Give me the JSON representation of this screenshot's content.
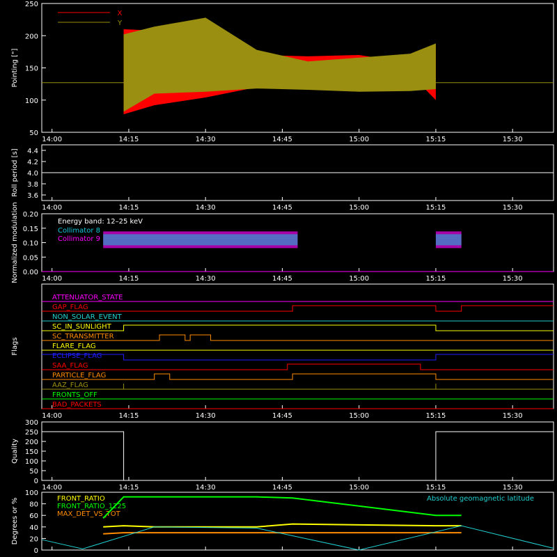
{
  "colors": {
    "background": "#000000",
    "frame": "#ffffff",
    "x_series": "#ff0000",
    "y_series": "#9a8f10",
    "collimator8": "#11c7d8",
    "collimator9": "#ff00ff",
    "front_ratio": "#ffff00",
    "front_ratio_1225": "#00ff00",
    "max_det": "#ff8c00",
    "geomag": "#20d0d0"
  },
  "time_ticks": [
    "14:00",
    "14:15",
    "14:30",
    "14:45",
    "15:00",
    "15:15",
    "15:30"
  ],
  "chart_data": [
    {
      "type": "line",
      "ylabel": "Pointing [\"]",
      "ylim": [
        50,
        250
      ],
      "yticks": [
        "50",
        "100",
        "150",
        "200",
        "250"
      ],
      "legend": [
        {
          "label": "X",
          "color_key": "x_series"
        },
        {
          "label": "Y",
          "color_key": "y_series"
        }
      ],
      "series": [
        {
          "name": "X",
          "x": [
            "14:14",
            "14:20",
            "14:30",
            "14:40",
            "14:50",
            "15:00",
            "15:10",
            "15:15"
          ],
          "values": [
            [
              78,
              210
            ],
            [
              92,
              208
            ],
            [
              104,
              205
            ],
            [
              120,
              170
            ],
            [
              140,
              168
            ],
            [
              148,
              170
            ],
            [
              141,
              158
            ],
            [
              100,
              185
            ]
          ]
        },
        {
          "name": "Y",
          "x": [
            "14:14",
            "14:20",
            "14:30",
            "14:40",
            "14:50",
            "15:00",
            "15:10",
            "15:15"
          ],
          "values": [
            [
              82,
              202
            ],
            [
              110,
              214
            ],
            [
              113,
              228
            ],
            [
              118,
              178
            ],
            [
              116,
              160
            ],
            [
              113,
              166
            ],
            [
              114,
              172
            ],
            [
              117,
              188
            ]
          ]
        }
      ],
      "baseline": 127
    },
    {
      "type": "line",
      "ylabel": "Roll period [s]",
      "ylim": [
        3.5,
        4.5
      ],
      "yticks": [
        "3.6",
        "3.8",
        "4.0",
        "4.2",
        "4.4"
      ],
      "series": [
        {
          "name": "",
          "x": [
            "13:58",
            "15:38"
          ],
          "values": [
            4.0,
            4.0
          ]
        }
      ]
    },
    {
      "type": "line",
      "ylabel": "Normalized modulation",
      "ylim": [
        0.0,
        0.2
      ],
      "yticks": [
        "0.00",
        "0.05",
        "0.10",
        "0.15",
        "0.20"
      ],
      "legend_title": "Energy band: 12–25 keV",
      "legend": [
        {
          "label": "Collimator 8",
          "color_key": "collimator8"
        },
        {
          "label": "Collimator 9",
          "color_key": "collimator9"
        }
      ],
      "active_ranges": [
        [
          "14:10",
          "14:48"
        ],
        [
          "15:15",
          "15:20"
        ]
      ],
      "level": 0.11
    },
    {
      "type": "table",
      "ylabel": "Flags",
      "flags": [
        {
          "name": "ATTENUATOR_STATE",
          "color_key": "collimator9",
          "segments": [
            [
              "13:58",
              "15:38",
              0
            ]
          ]
        },
        {
          "name": "GAP_FLAG",
          "color_key": "x_series",
          "segments": [
            [
              "13:58",
              "14:47",
              0
            ],
            [
              "14:47",
              "15:15",
              1
            ],
            [
              "15:15",
              "15:20",
              0
            ],
            [
              "15:20",
              "15:38",
              1
            ]
          ]
        },
        {
          "name": "NON_SOLAR_EVENT",
          "color_key": "geomag",
          "segments": [
            [
              "13:58",
              "15:38",
              0
            ]
          ]
        },
        {
          "name": "SC_IN_SUNLIGHT",
          "color_key": "front_ratio",
          "segments": [
            [
              "13:58",
              "14:14",
              0
            ],
            [
              "14:14",
              "15:15",
              1
            ],
            [
              "15:15",
              "15:38",
              0
            ]
          ]
        },
        {
          "name": "SC_TRANSMITTER",
          "color_key": "max_det",
          "segments": [
            [
              "13:58",
              "14:21",
              0
            ],
            [
              "14:21",
              "14:26",
              1
            ],
            [
              "14:26",
              "14:27",
              0
            ],
            [
              "14:27",
              "14:31",
              1
            ],
            [
              "14:31",
              "15:38",
              0
            ]
          ]
        },
        {
          "name": "FLARE_FLAG",
          "color_key": "front_ratio",
          "segments": [
            [
              "13:58",
              "15:38",
              0
            ]
          ]
        },
        {
          "name": "ECLIPSE_FLAG",
          "color_key": "blue",
          "segments": [
            [
              "13:58",
              "14:14",
              1
            ],
            [
              "14:14",
              "15:15",
              0
            ],
            [
              "15:15",
              "15:38",
              1
            ]
          ]
        },
        {
          "name": "SAA_FLAG",
          "color_key": "x_series",
          "segments": [
            [
              "13:58",
              "14:46",
              0
            ],
            [
              "14:46",
              "15:12",
              1
            ],
            [
              "15:12",
              "15:38",
              0
            ]
          ]
        },
        {
          "name": "PARTICLE_FLAG",
          "color_key": "max_det",
          "segments": [
            [
              "13:58",
              "14:20",
              0
            ],
            [
              "14:20",
              "14:23",
              1
            ],
            [
              "14:23",
              "14:47",
              0
            ],
            [
              "14:47",
              "15:15",
              1
            ],
            [
              "15:15",
              "15:38",
              0
            ]
          ]
        },
        {
          "name": "AAZ_FLAG",
          "color_key": "y_series",
          "segments": [
            [
              "13:58",
              "14:14",
              0
            ],
            [
              "14:14",
              "14:14",
              1
            ],
            [
              "14:14",
              "15:15",
              0
            ],
            [
              "15:15",
              "15:15",
              1
            ],
            [
              "15:15",
              "15:38",
              0
            ]
          ]
        },
        {
          "name": "FRONTS_OFF",
          "color_key": "front_ratio_1225",
          "segments": [
            [
              "13:58",
              "15:38",
              0
            ]
          ]
        },
        {
          "name": "BAD_PACKETS",
          "color_key": "x_series",
          "segments": [
            [
              "13:58",
              "15:38",
              0
            ]
          ]
        }
      ]
    },
    {
      "type": "line",
      "ylabel": "Quality",
      "ylim": [
        0,
        300
      ],
      "yticks": [
        "0",
        "50",
        "100",
        "150",
        "200",
        "250",
        "300"
      ],
      "series": [
        {
          "name": "",
          "x": [
            "13:58",
            "14:14",
            "14:14",
            "15:15",
            "15:15",
            "15:38"
          ],
          "values": [
            250,
            250,
            0,
            0,
            250,
            250
          ]
        }
      ]
    },
    {
      "type": "line",
      "ylabel": "Degrees or %",
      "ylim": [
        0,
        100
      ],
      "yticks": [
        "0",
        "20",
        "40",
        "60",
        "80",
        "100"
      ],
      "legend": [
        {
          "label": "FRONT_RATIO",
          "color_key": "front_ratio"
        },
        {
          "label": "FRONT_RATIO_1225",
          "color_key": "front_ratio_1225"
        },
        {
          "label": "MAX_DET_VS_TOT",
          "color_key": "max_det"
        },
        {
          "label": "Absolute geomagnetic latitude",
          "color_key": "geomag"
        }
      ],
      "series": [
        {
          "name": "FRONT_RATIO",
          "x": [
            "14:10",
            "14:14",
            "14:20",
            "14:40",
            "14:47",
            "15:15",
            "15:20"
          ],
          "values": [
            40,
            42,
            40,
            40,
            45,
            42,
            42
          ]
        },
        {
          "name": "FRONT_RATIO_1225",
          "x": [
            "14:10",
            "14:14",
            "14:20",
            "14:40",
            "14:47",
            "15:15",
            "15:20"
          ],
          "values": [
            55,
            92,
            92,
            92,
            90,
            60,
            60
          ]
        },
        {
          "name": "MAX_DET_VS_TOT",
          "x": [
            "14:10",
            "14:14",
            "14:20",
            "14:40",
            "14:47",
            "15:15",
            "15:20"
          ],
          "values": [
            28,
            30,
            30,
            30,
            30,
            30,
            30
          ]
        },
        {
          "name": "Absolute geomagnetic latitude",
          "x": [
            "13:58",
            "14:06",
            "14:20",
            "14:40",
            "15:00",
            "15:20",
            "15:38"
          ],
          "values": [
            18,
            2,
            40,
            38,
            0,
            42,
            3
          ]
        }
      ]
    }
  ]
}
